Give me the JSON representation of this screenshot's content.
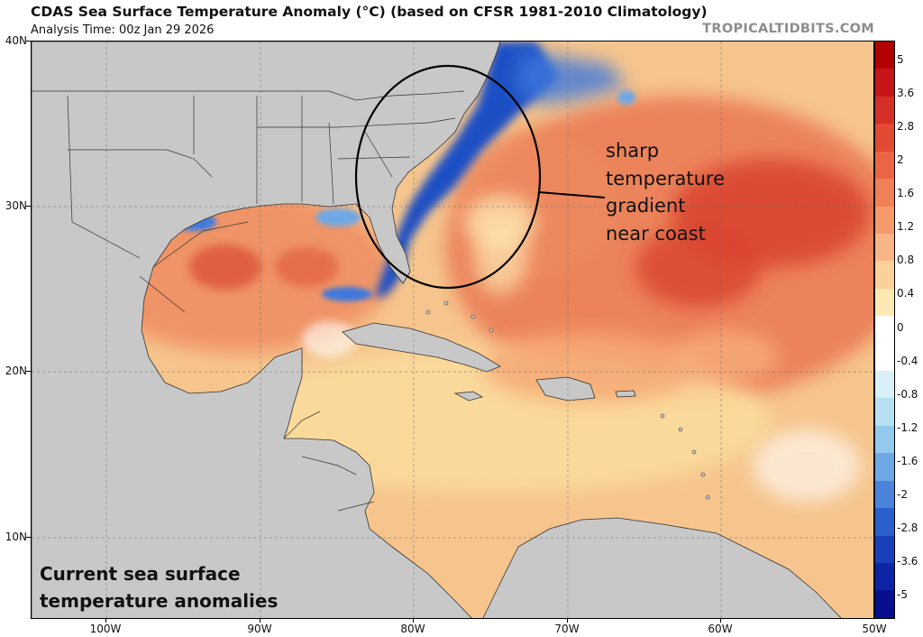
{
  "header": {
    "title": "CDAS Sea Surface Temperature Anomaly (°C) (based on CFSR 1981-2010 Climatology)",
    "analysis_time": "Analysis Time: 00z Jan 29 2026",
    "credit": "TROPICALTIDBITS.COM"
  },
  "axes": {
    "lat_labels": [
      "40N",
      "30N",
      "20N",
      "10N"
    ],
    "lon_labels": [
      "100W",
      "90W",
      "80W",
      "70W",
      "60W",
      "50W"
    ]
  },
  "colorbar": {
    "labels": [
      "5",
      "3.6",
      "2.8",
      "2",
      "1.6",
      "1.2",
      "0.8",
      "0.4",
      "0",
      "-0.4",
      "-0.8",
      "-1.2",
      "-1.6",
      "-2",
      "-2.8",
      "-3.6",
      "-5"
    ],
    "colors": [
      "#b30000",
      "#c8151a",
      "#d62f27",
      "#e34a33",
      "#eb6545",
      "#f08057",
      "#f59a6b",
      "#f8b586",
      "#fbd19a",
      "#fde9b4",
      "#ffffff",
      "#ffffff",
      "#d9f0f7",
      "#b7e0f3",
      "#94c9ee",
      "#6ea8e5",
      "#4a84da",
      "#2b5fcc",
      "#1a3fba",
      "#0d24a6",
      "#06108f"
    ]
  },
  "annotation": {
    "lines": [
      "sharp",
      "temperature",
      "gradient",
      "near coast"
    ]
  },
  "caption": {
    "lines": [
      "Current sea surface",
      "temperature anomalies"
    ]
  },
  "colors": {
    "land": "#c8c8c8",
    "ocean_base": "#f7c48a",
    "warm": "#e7634a",
    "hot": "#d8402e",
    "pale": "#fde8a8",
    "cold": "#1d57c9",
    "cool": "#9cc9f0"
  }
}
